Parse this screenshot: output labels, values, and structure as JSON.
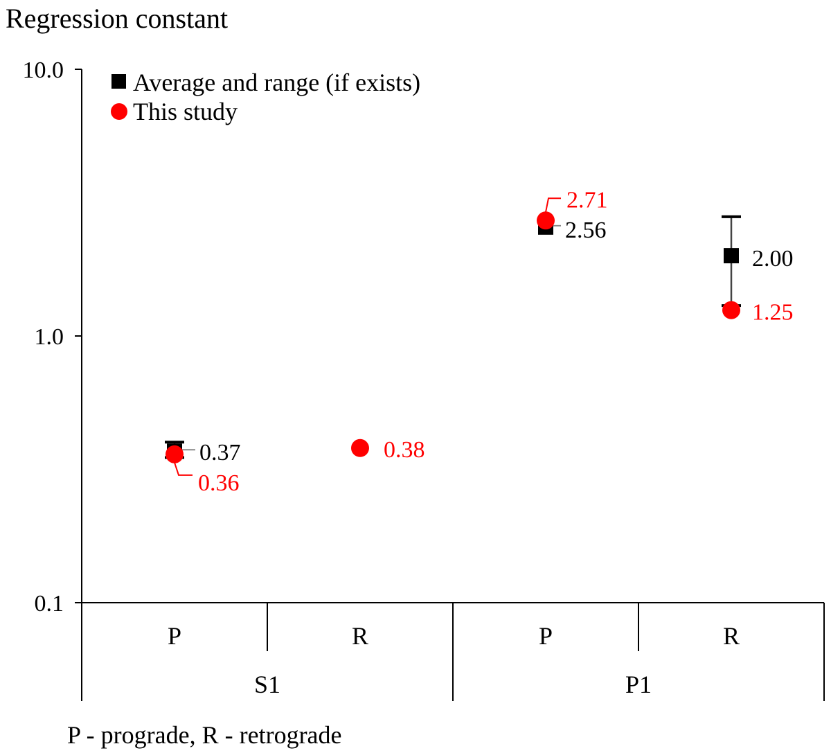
{
  "chart_data": {
    "type": "scatter",
    "title": "Regression constant",
    "ylabel": "Regression constant",
    "yscale": "log",
    "ylim": [
      0.1,
      10.0
    ],
    "yticks": [
      {
        "value": 10.0,
        "label": "10.0"
      },
      {
        "value": 1.0,
        "label": "1.0"
      },
      {
        "value": 0.1,
        "label": "0.1"
      }
    ],
    "categories": [
      "P",
      "R",
      "P",
      "R"
    ],
    "groups": [
      {
        "name": "S1",
        "span": [
          0,
          1
        ]
      },
      {
        "name": "P1",
        "span": [
          2,
          3
        ]
      }
    ],
    "legend_position": "top-left",
    "series": [
      {
        "name": "Average and range (if exists)",
        "marker": "square",
        "color": "#000000",
        "points": [
          {
            "category_index": 0,
            "value": 0.37,
            "label": "0.37",
            "range": [
              0.35,
              0.4
            ]
          },
          {
            "category_index": 2,
            "value": 2.56,
            "label": "2.56"
          },
          {
            "category_index": 3,
            "value": 2.0,
            "label": "2.00",
            "range": [
              1.3,
              2.8
            ]
          }
        ]
      },
      {
        "name": "This study",
        "marker": "circle",
        "color": "#ff0000",
        "points": [
          {
            "category_index": 0,
            "value": 0.36,
            "label": "0.36"
          },
          {
            "category_index": 1,
            "value": 0.38,
            "label": "0.38"
          },
          {
            "category_index": 2,
            "value": 2.71,
            "label": "2.71"
          },
          {
            "category_index": 3,
            "value": 1.25,
            "label": "1.25"
          }
        ]
      }
    ]
  },
  "footnote": "P - prograde, R - retrograde"
}
